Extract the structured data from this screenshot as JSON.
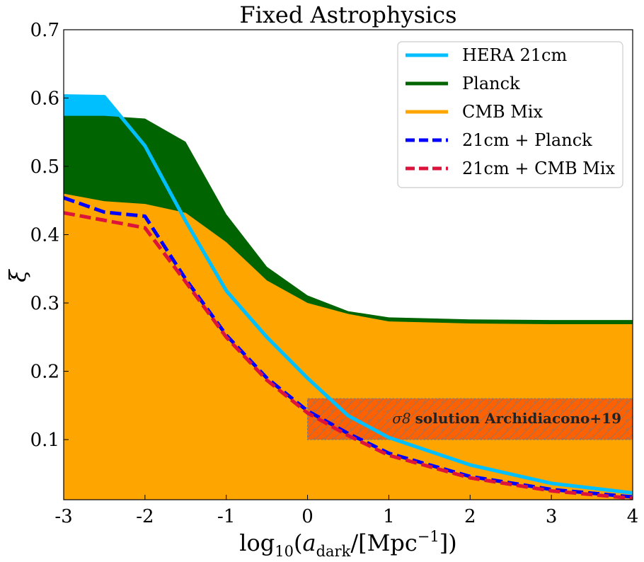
{
  "chart_data": {
    "type": "area",
    "title": "Fixed Astrophysics",
    "xlabel": "log10(a_dark/[Mpc^-1])",
    "ylabel": "ξ",
    "xlim": [
      -3,
      4
    ],
    "ylim": [
      0.012,
      0.7
    ],
    "xticks": [
      -3,
      -2,
      -1,
      0,
      1,
      2,
      3,
      4
    ],
    "xtick_labels": [
      "-3",
      "-2",
      "-1",
      "0",
      "1",
      "2",
      "3",
      "4"
    ],
    "yticks": [
      0.1,
      0.2,
      0.3,
      0.4,
      0.5,
      0.6,
      0.7
    ],
    "ytick_labels": [
      "0.1",
      "0.2",
      "0.3",
      "0.4",
      "0.5",
      "0.6",
      "0.7"
    ],
    "x": [
      -3,
      -2.5,
      -2,
      -1.5,
      -1,
      -0.5,
      0,
      0.5,
      1,
      2,
      3,
      4
    ],
    "series": [
      {
        "name": "HERA 21cm",
        "kind": "area",
        "color": "#00bfff",
        "values": [
          0.603,
          0.602,
          0.53,
          0.42,
          0.318,
          0.25,
          0.19,
          0.135,
          0.103,
          0.063,
          0.036,
          0.022
        ]
      },
      {
        "name": "Planck",
        "kind": "area",
        "color": "#006400",
        "values": [
          0.574,
          0.574,
          0.57,
          0.536,
          0.43,
          0.353,
          0.311,
          0.288,
          0.279,
          0.276,
          0.275,
          0.275
        ]
      },
      {
        "name": "CMB Mix",
        "kind": "area",
        "color": "#ffa500",
        "values": [
          0.46,
          0.449,
          0.445,
          0.432,
          0.389,
          0.333,
          0.3,
          0.284,
          0.273,
          0.27,
          0.269,
          0.269
        ]
      },
      {
        "name": "21cm + Planck",
        "kind": "dashed-line",
        "color": "#0000ff",
        "values": [
          0.454,
          0.433,
          0.427,
          0.335,
          0.253,
          0.19,
          0.142,
          0.109,
          0.08,
          0.046,
          0.027,
          0.016
        ]
      },
      {
        "name": "21cm + CMB Mix",
        "kind": "dashed-line",
        "color": "#dc143c",
        "values": [
          0.432,
          0.421,
          0.41,
          0.331,
          0.25,
          0.187,
          0.139,
          0.106,
          0.077,
          0.044,
          0.025,
          0.014
        ]
      }
    ],
    "band": {
      "label_symbol": "σ8",
      "label": "solution Archidiacono+19",
      "x_range": [
        0,
        4
      ],
      "y_range": [
        0.1,
        0.16
      ],
      "color": "#ff5500",
      "hatch": "/"
    },
    "legend": {
      "position": "top-right",
      "entries": [
        "HERA 21cm",
        "Planck",
        "CMB Mix",
        "21cm + Planck",
        "21cm + CMB Mix"
      ]
    },
    "grid": false
  }
}
